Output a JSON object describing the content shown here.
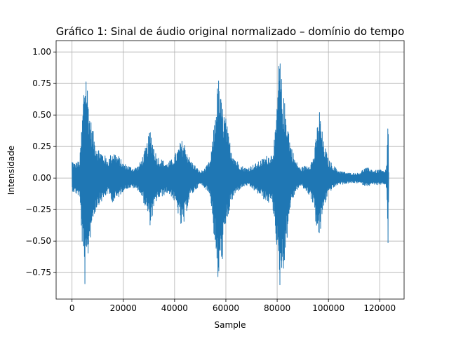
{
  "chart_data": {
    "type": "line",
    "title": "Gráfico 1: Sinal de áudio original normalizado – domínio do tempo",
    "xlabel": "Sample",
    "ylabel": "Intensidade",
    "xlim": [
      -6200,
      129500
    ],
    "ylim": [
      -0.96,
      1.09
    ],
    "grid": true,
    "legend": "none",
    "x_ticks": [
      0,
      20000,
      40000,
      60000,
      80000,
      100000,
      120000
    ],
    "x_tick_labels": [
      "0",
      "20000",
      "40000",
      "60000",
      "80000",
      "100000",
      "120000"
    ],
    "y_ticks": [
      -0.75,
      -0.5,
      -0.25,
      0.0,
      0.25,
      0.5,
      0.75,
      1.0
    ],
    "y_tick_labels": [
      "−0.75",
      "−0.50",
      "−0.25",
      "0.00",
      "0.25",
      "0.50",
      "0.75",
      "1.00"
    ],
    "series": [
      {
        "color": "#1f77b4",
        "envelope": {
          "x": [
            0,
            1000,
            3000,
            4000,
            4800,
            5500,
            6200,
            7000,
            8000,
            9000,
            10000,
            12000,
            14000,
            16000,
            18000,
            20000,
            22000,
            24000,
            26000,
            28000,
            29500,
            30500,
            31500,
            33000,
            35000,
            37000,
            39000,
            41000,
            42500,
            43500,
            44500,
            46000,
            48000,
            50000,
            52000,
            54000,
            55500,
            56500,
            57000,
            58000,
            59000,
            60000,
            61000,
            62000,
            64000,
            66000,
            68000,
            70000,
            72000,
            74000,
            76000,
            78000,
            79500,
            80500,
            81000,
            82000,
            83000,
            84000,
            85000,
            87000,
            89000,
            91000,
            93000,
            94500,
            95500,
            96500,
            98000,
            100000,
            102000,
            104000,
            106000,
            108000,
            110000,
            112000,
            114000,
            116000,
            118000,
            120000,
            122000,
            122800,
            123200,
            123500
          ],
          "ymax": [
            0.15,
            0.12,
            0.14,
            0.5,
            0.85,
            0.9,
            0.7,
            0.5,
            0.4,
            0.3,
            0.25,
            0.2,
            0.15,
            0.22,
            0.18,
            0.12,
            0.1,
            0.08,
            0.1,
            0.2,
            0.3,
            0.4,
            0.3,
            0.18,
            0.15,
            0.12,
            0.15,
            0.22,
            0.3,
            0.3,
            0.25,
            0.15,
            0.1,
            0.05,
            0.08,
            0.15,
            0.45,
            0.7,
            0.82,
            0.65,
            0.55,
            0.48,
            0.35,
            0.25,
            0.15,
            0.1,
            0.08,
            0.1,
            0.12,
            0.15,
            0.18,
            0.2,
            0.4,
            0.88,
            1.0,
            0.7,
            0.6,
            0.5,
            0.3,
            0.15,
            0.08,
            0.1,
            0.12,
            0.2,
            0.4,
            0.55,
            0.3,
            0.15,
            0.1,
            0.06,
            0.05,
            0.04,
            0.04,
            0.04,
            0.08,
            0.08,
            0.06,
            0.07,
            0.05,
            0.12,
            0.62,
            0.05
          ],
          "ymin": [
            -0.1,
            -0.12,
            -0.15,
            -0.55,
            -0.85,
            -0.88,
            -0.65,
            -0.5,
            -0.35,
            -0.28,
            -0.22,
            -0.18,
            -0.12,
            -0.2,
            -0.16,
            -0.1,
            -0.08,
            -0.08,
            -0.1,
            -0.2,
            -0.3,
            -0.38,
            -0.3,
            -0.18,
            -0.15,
            -0.12,
            -0.15,
            -0.25,
            -0.4,
            -0.4,
            -0.28,
            -0.15,
            -0.1,
            -0.05,
            -0.08,
            -0.15,
            -0.5,
            -0.8,
            -0.85,
            -0.75,
            -0.6,
            -0.42,
            -0.3,
            -0.2,
            -0.12,
            -0.08,
            -0.06,
            -0.08,
            -0.12,
            -0.15,
            -0.2,
            -0.2,
            -0.45,
            -0.85,
            -0.88,
            -0.75,
            -0.7,
            -0.45,
            -0.25,
            -0.12,
            -0.06,
            -0.1,
            -0.15,
            -0.25,
            -0.45,
            -0.5,
            -0.25,
            -0.12,
            -0.08,
            -0.05,
            -0.05,
            -0.04,
            -0.04,
            -0.04,
            -0.06,
            -0.06,
            -0.05,
            -0.06,
            -0.05,
            -0.1,
            -0.6,
            -0.05
          ]
        }
      }
    ]
  }
}
